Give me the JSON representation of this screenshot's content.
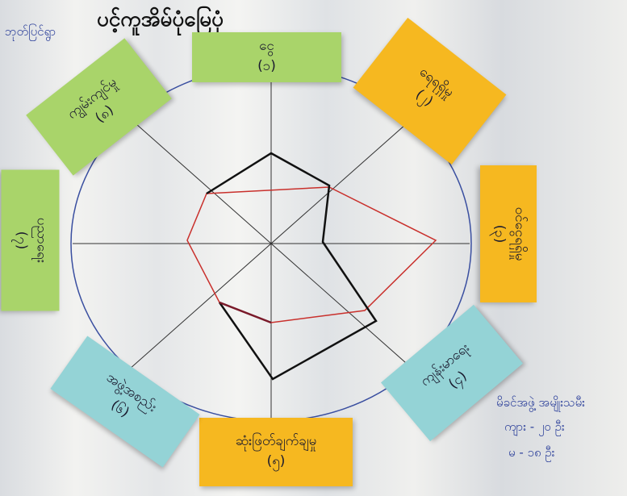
{
  "title": "ပင့်ကူအိမ်ပုံမြေပုံ",
  "corner_note": "ဘုတ်ပြင်ရွာ",
  "notes": [
    {
      "label": "ငွေ",
      "number": "(၁)"
    },
    {
      "label": "ရေရရှိမှု",
      "number": "(၂)"
    },
    {
      "label": "ဝင်ငွေရရှိမှု",
      "number": "(၃)"
    },
    {
      "label": "ကျန်းမာရေး",
      "number": "(၄)"
    },
    {
      "label": "ဆုံးဖြတ်ချက်ချမှု",
      "number": "(၅)"
    },
    {
      "label": "အဖွဲ့အစည်း",
      "number": "(၆)"
    },
    {
      "label": "ပညာရေး",
      "number": "(၇)"
    },
    {
      "label": "ကျွမ်းကျင်မှု",
      "number": "(၈)"
    }
  ],
  "participants": {
    "title": "မိခင်အဖွဲ့ အမျိုးသမီး",
    "male": "ကျား - ၂၀ ဦး",
    "female": "မ - ၁၈ ဦး"
  }
}
